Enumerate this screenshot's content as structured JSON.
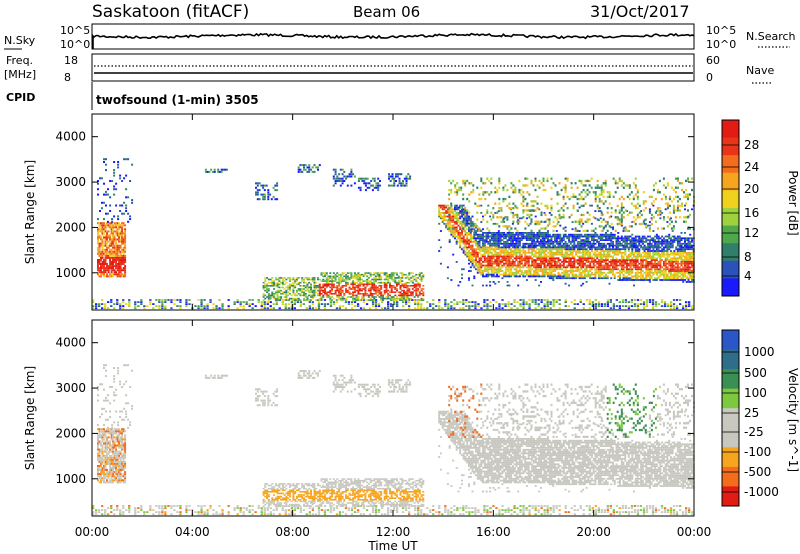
{
  "header": {
    "station": "Saskatoon (fitACF)",
    "beam": "Beam 06",
    "date": "31/Oct/2017"
  },
  "params": {
    "nsky_label": "N.Sky",
    "nsearch_label": "N.Search",
    "freq_label": "Freq.",
    "freq_unit": "[MHz]",
    "nave_label": "Nave",
    "cpid_label": "CPID",
    "cpid_value": "twofsound (1-min) 3505",
    "noise_ticks_left": [
      "10^5",
      "10^0"
    ],
    "noise_ticks_right": [
      "10^5",
      "10^0"
    ],
    "freq_ticks": [
      "18",
      "8"
    ],
    "nave_ticks": [
      "60",
      "0"
    ]
  },
  "chart_data": [
    {
      "type": "heatmap",
      "panel": "power",
      "ylabel": "Slant Range [km]",
      "xlabel": "",
      "yticks": [
        "1000",
        "2000",
        "3000",
        "4000"
      ],
      "ylim": [
        180,
        4500
      ],
      "xlim_hours": [
        0,
        24
      ],
      "colorbar": {
        "label": "Power [dB]",
        "ticks": [
          "4",
          "8",
          "12",
          "16",
          "20",
          "24",
          "28"
        ],
        "colors": [
          "#1a1aff",
          "#2a52b8",
          "#2f7f6a",
          "#4fa84b",
          "#9ed23c",
          "#f0d21e",
          "#f7a51f",
          "#f36d1c",
          "#e8351a",
          "#e21c14"
        ]
      },
      "echo_regions": [
        {
          "t0": 0.2,
          "t1": 1.3,
          "r0": 900,
          "r1": 2100,
          "level": "high"
        },
        {
          "t0": 6.8,
          "t1": 11.0,
          "r0": 400,
          "r1": 1000,
          "level": "mid"
        },
        {
          "t0": 9.0,
          "t1": 13.0,
          "r0": 450,
          "r1": 750,
          "level": "high"
        },
        {
          "t0": 13.8,
          "t1": 24.0,
          "r0": 800,
          "r1": 1500,
          "level": "high"
        },
        {
          "t0": 14.0,
          "t1": 24.0,
          "r0": 1500,
          "r1": 2300,
          "level": "low"
        }
      ]
    },
    {
      "type": "heatmap",
      "panel": "velocity",
      "ylabel": "Slant Range [km]",
      "xlabel": "Time UT",
      "yticks": [
        "1000",
        "2000",
        "3000",
        "4000"
      ],
      "ylim": [
        180,
        4500
      ],
      "xticks": [
        "00:00",
        "04:00",
        "08:00",
        "12:00",
        "16:00",
        "20:00",
        "00:00"
      ],
      "colorbar": {
        "label": "Velocity [m s^-1]",
        "ticks": [
          "1000",
          "500",
          "100",
          "25",
          "-25",
          "-100",
          "-500",
          "-1000"
        ],
        "colors": [
          "#2a56c8",
          "#2f6e8a",
          "#3a8f52",
          "#7cc83e",
          "#c8c8c0",
          "#c8c8c0",
          "#f7a51f",
          "#f36d1c",
          "#e21c14"
        ]
      }
    }
  ]
}
